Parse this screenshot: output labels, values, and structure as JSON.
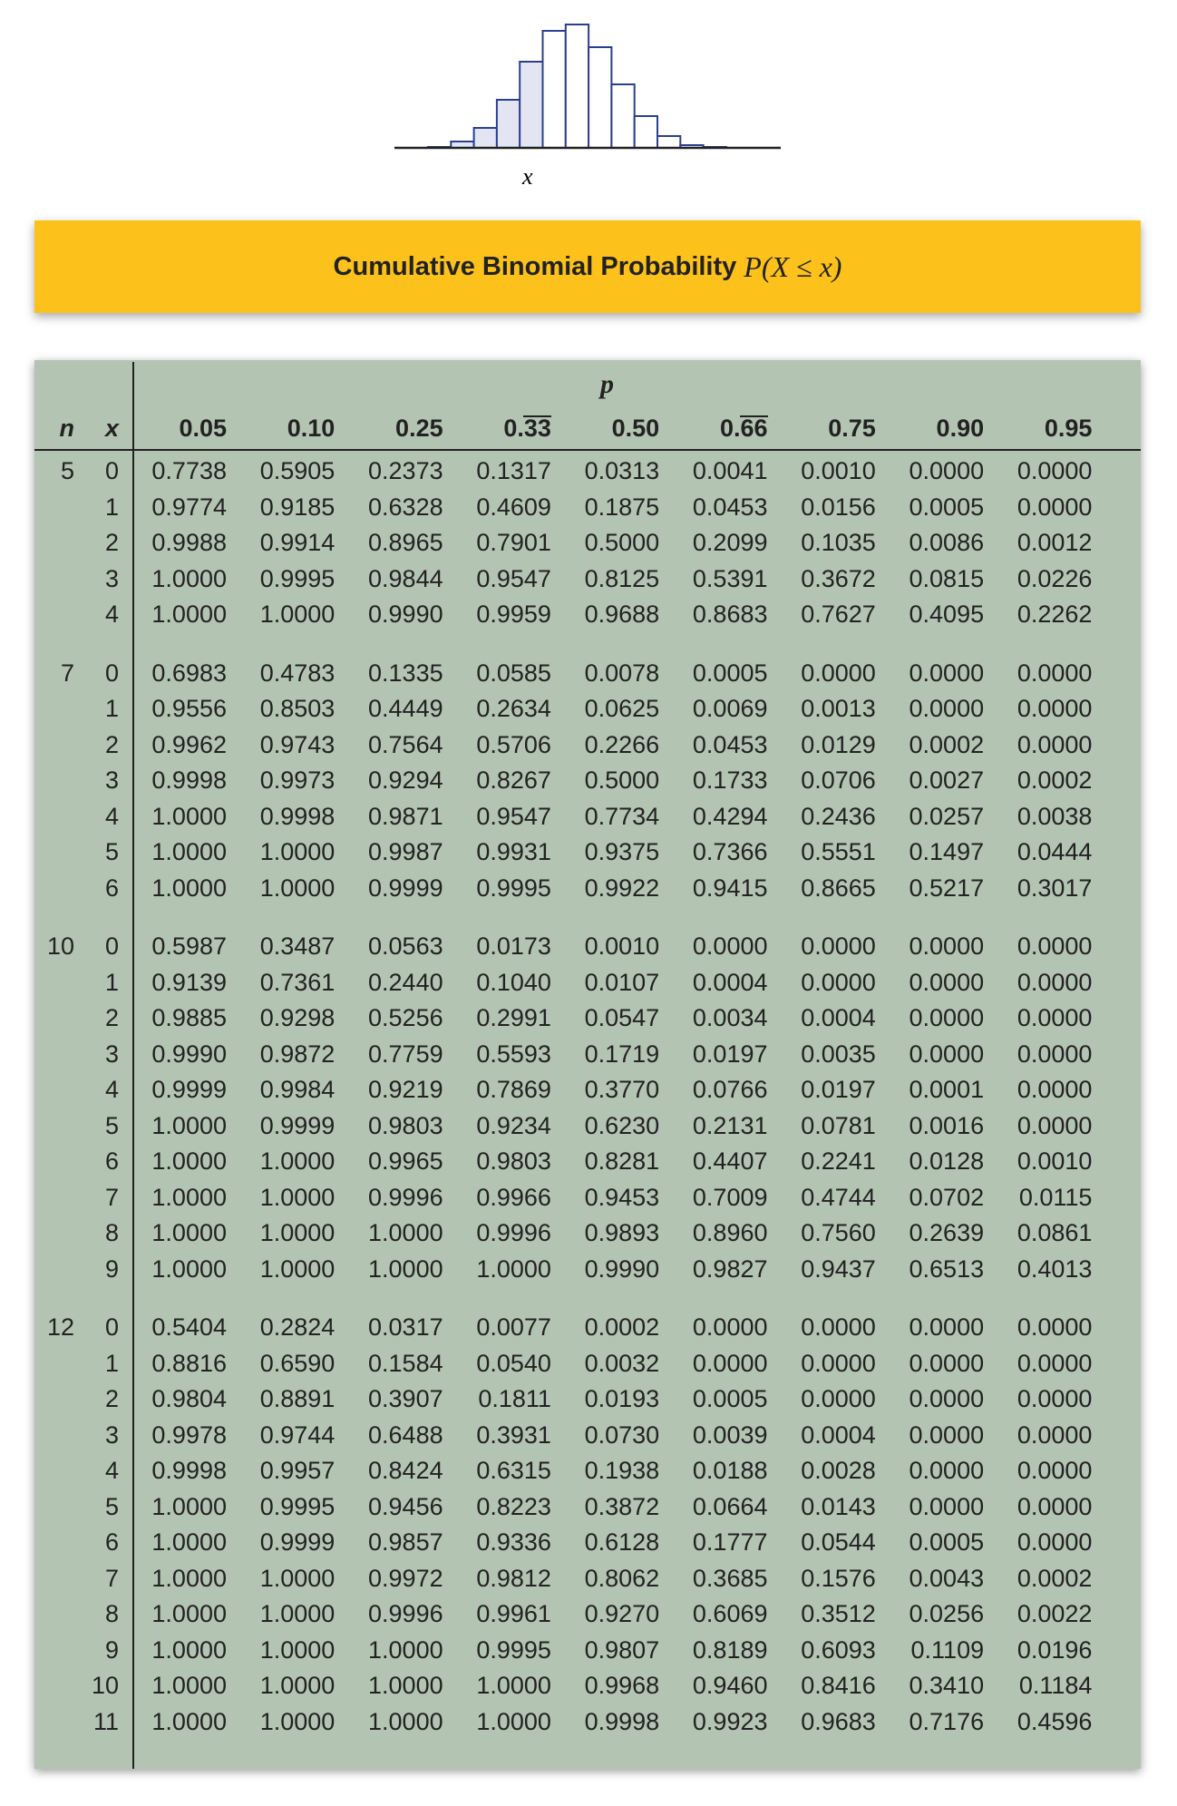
{
  "figure": {
    "axis_label": "x",
    "bar_heights": [
      1,
      7,
      22,
      53,
      95,
      129,
      136,
      111,
      70,
      35,
      13,
      3,
      1
    ],
    "shaded_bars": 5,
    "bar_color": "#2b3f8f",
    "shade_color": "#e3e5f2"
  },
  "title": {
    "text": "Cumulative Binomial Probability",
    "formula": "P(X ≤ x)",
    "color": "#fcc21b"
  },
  "table": {
    "p_label": "p",
    "n_label": "n",
    "x_label": "x",
    "columns": [
      "0.05",
      "0.10",
      "0.25",
      "0.33",
      "0.50",
      "0.66",
      "0.75",
      "0.90",
      "0.95"
    ],
    "overlined_columns": [
      3,
      5
    ],
    "groups": [
      {
        "n": "5",
        "rows": [
          [
            "0",
            "0.7738",
            "0.5905",
            "0.2373",
            "0.1317",
            "0.0313",
            "0.0041",
            "0.0010",
            "0.0000",
            "0.0000"
          ],
          [
            "1",
            "0.9774",
            "0.9185",
            "0.6328",
            "0.4609",
            "0.1875",
            "0.0453",
            "0.0156",
            "0.0005",
            "0.0000"
          ],
          [
            "2",
            "0.9988",
            "0.9914",
            "0.8965",
            "0.7901",
            "0.5000",
            "0.2099",
            "0.1035",
            "0.0086",
            "0.0012"
          ],
          [
            "3",
            "1.0000",
            "0.9995",
            "0.9844",
            "0.9547",
            "0.8125",
            "0.5391",
            "0.3672",
            "0.0815",
            "0.0226"
          ],
          [
            "4",
            "1.0000",
            "1.0000",
            "0.9990",
            "0.9959",
            "0.9688",
            "0.8683",
            "0.7627",
            "0.4095",
            "0.2262"
          ]
        ]
      },
      {
        "n": "7",
        "rows": [
          [
            "0",
            "0.6983",
            "0.4783",
            "0.1335",
            "0.0585",
            "0.0078",
            "0.0005",
            "0.0000",
            "0.0000",
            "0.0000"
          ],
          [
            "1",
            "0.9556",
            "0.8503",
            "0.4449",
            "0.2634",
            "0.0625",
            "0.0069",
            "0.0013",
            "0.0000",
            "0.0000"
          ],
          [
            "2",
            "0.9962",
            "0.9743",
            "0.7564",
            "0.5706",
            "0.2266",
            "0.0453",
            "0.0129",
            "0.0002",
            "0.0000"
          ],
          [
            "3",
            "0.9998",
            "0.9973",
            "0.9294",
            "0.8267",
            "0.5000",
            "0.1733",
            "0.0706",
            "0.0027",
            "0.0002"
          ],
          [
            "4",
            "1.0000",
            "0.9998",
            "0.9871",
            "0.9547",
            "0.7734",
            "0.4294",
            "0.2436",
            "0.0257",
            "0.0038"
          ],
          [
            "5",
            "1.0000",
            "1.0000",
            "0.9987",
            "0.9931",
            "0.9375",
            "0.7366",
            "0.5551",
            "0.1497",
            "0.0444"
          ],
          [
            "6",
            "1.0000",
            "1.0000",
            "0.9999",
            "0.9995",
            "0.9922",
            "0.9415",
            "0.8665",
            "0.5217",
            "0.3017"
          ]
        ]
      },
      {
        "n": "10",
        "rows": [
          [
            "0",
            "0.5987",
            "0.3487",
            "0.0563",
            "0.0173",
            "0.0010",
            "0.0000",
            "0.0000",
            "0.0000",
            "0.0000"
          ],
          [
            "1",
            "0.9139",
            "0.7361",
            "0.2440",
            "0.1040",
            "0.0107",
            "0.0004",
            "0.0000",
            "0.0000",
            "0.0000"
          ],
          [
            "2",
            "0.9885",
            "0.9298",
            "0.5256",
            "0.2991",
            "0.0547",
            "0.0034",
            "0.0004",
            "0.0000",
            "0.0000"
          ],
          [
            "3",
            "0.9990",
            "0.9872",
            "0.7759",
            "0.5593",
            "0.1719",
            "0.0197",
            "0.0035",
            "0.0000",
            "0.0000"
          ],
          [
            "4",
            "0.9999",
            "0.9984",
            "0.9219",
            "0.7869",
            "0.3770",
            "0.0766",
            "0.0197",
            "0.0001",
            "0.0000"
          ],
          [
            "5",
            "1.0000",
            "0.9999",
            "0.9803",
            "0.9234",
            "0.6230",
            "0.2131",
            "0.0781",
            "0.0016",
            "0.0000"
          ],
          [
            "6",
            "1.0000",
            "1.0000",
            "0.9965",
            "0.9803",
            "0.8281",
            "0.4407",
            "0.2241",
            "0.0128",
            "0.0010"
          ],
          [
            "7",
            "1.0000",
            "1.0000",
            "0.9996",
            "0.9966",
            "0.9453",
            "0.7009",
            "0.4744",
            "0.0702",
            "0.0115"
          ],
          [
            "8",
            "1.0000",
            "1.0000",
            "1.0000",
            "0.9996",
            "0.9893",
            "0.8960",
            "0.7560",
            "0.2639",
            "0.0861"
          ],
          [
            "9",
            "1.0000",
            "1.0000",
            "1.0000",
            "1.0000",
            "0.9990",
            "0.9827",
            "0.9437",
            "0.6513",
            "0.4013"
          ]
        ]
      },
      {
        "n": "12",
        "rows": [
          [
            "0",
            "0.5404",
            "0.2824",
            "0.0317",
            "0.0077",
            "0.0002",
            "0.0000",
            "0.0000",
            "0.0000",
            "0.0000"
          ],
          [
            "1",
            "0.8816",
            "0.6590",
            "0.1584",
            "0.0540",
            "0.0032",
            "0.0000",
            "0.0000",
            "0.0000",
            "0.0000"
          ],
          [
            "2",
            "0.9804",
            "0.8891",
            "0.3907",
            "0.1811",
            "0.0193",
            "0.0005",
            "0.0000",
            "0.0000",
            "0.0000"
          ],
          [
            "3",
            "0.9978",
            "0.9744",
            "0.6488",
            "0.3931",
            "0.0730",
            "0.0039",
            "0.0004",
            "0.0000",
            "0.0000"
          ],
          [
            "4",
            "0.9998",
            "0.9957",
            "0.8424",
            "0.6315",
            "0.1938",
            "0.0188",
            "0.0028",
            "0.0000",
            "0.0000"
          ],
          [
            "5",
            "1.0000",
            "0.9995",
            "0.9456",
            "0.8223",
            "0.3872",
            "0.0664",
            "0.0143",
            "0.0000",
            "0.0000"
          ],
          [
            "6",
            "1.0000",
            "0.9999",
            "0.9857",
            "0.9336",
            "0.6128",
            "0.1777",
            "0.0544",
            "0.0005",
            "0.0000"
          ],
          [
            "7",
            "1.0000",
            "1.0000",
            "0.9972",
            "0.9812",
            "0.8062",
            "0.3685",
            "0.1576",
            "0.0043",
            "0.0002"
          ],
          [
            "8",
            "1.0000",
            "1.0000",
            "0.9996",
            "0.9961",
            "0.9270",
            "0.6069",
            "0.3512",
            "0.0256",
            "0.0022"
          ],
          [
            "9",
            "1.0000",
            "1.0000",
            "1.0000",
            "0.9995",
            "0.9807",
            "0.8189",
            "0.6093",
            "0.1109",
            "0.0196"
          ],
          [
            "10",
            "1.0000",
            "1.0000",
            "1.0000",
            "1.0000",
            "0.9968",
            "0.9460",
            "0.8416",
            "0.3410",
            "0.1184"
          ],
          [
            "11",
            "1.0000",
            "1.0000",
            "1.0000",
            "1.0000",
            "0.9998",
            "0.9923",
            "0.9683",
            "0.7176",
            "0.4596"
          ]
        ]
      }
    ]
  }
}
